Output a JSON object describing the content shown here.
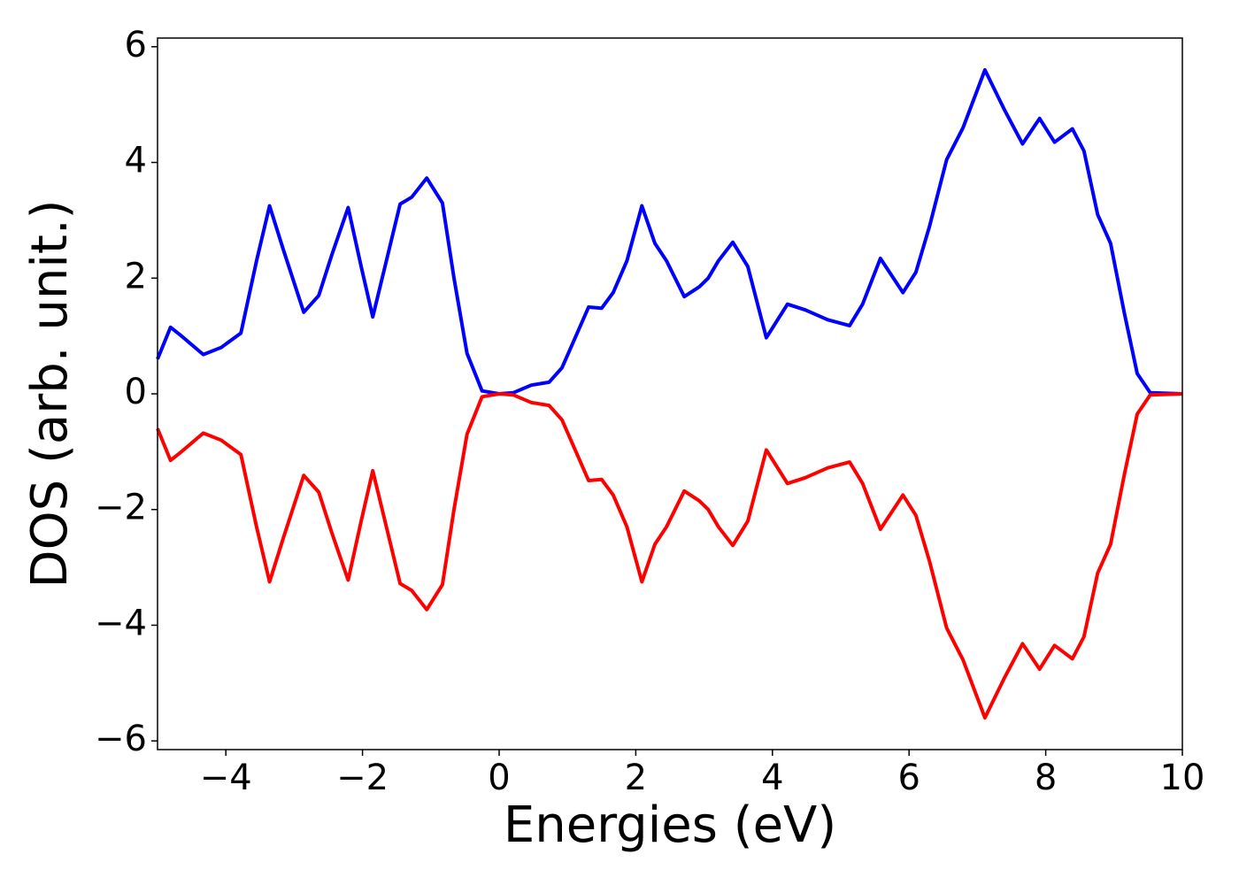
{
  "chart_data": {
    "type": "line",
    "xlabel": "Energies (eV)",
    "ylabel": "DOS (arb. unit.)",
    "x": [
      -5,
      -4.81,
      -4.65,
      -4.33,
      -4.07,
      -3.78,
      -3.55,
      -3.36,
      -3.16,
      -2.86,
      -2.64,
      -2.45,
      -2.21,
      -2.02,
      -1.85,
      -1.65,
      -1.45,
      -1.28,
      -1.06,
      -0.83,
      -0.66,
      -0.47,
      -0.25,
      0,
      0.21,
      0.47,
      0.73,
      0.92,
      1.31,
      1.5,
      1.67,
      1.87,
      2.09,
      2.28,
      2.45,
      2.71,
      2.93,
      3.06,
      3.21,
      3.42,
      3.64,
      3.91,
      4.22,
      4.48,
      4.81,
      5.13,
      5.32,
      5.58,
      5.91,
      6.1,
      6.3,
      6.55,
      6.79,
      7.11,
      7.4,
      7.66,
      7.91,
      8.13,
      8.39,
      8.56,
      8.76,
      8.95,
      9.15,
      9.34,
      9.53,
      10
    ],
    "series": [
      {
        "color": "#0000ff",
        "values": [
          0.6,
          1.15,
          1.0,
          0.68,
          0.8,
          1.05,
          2.3,
          3.25,
          2.5,
          1.41,
          1.7,
          2.4,
          3.22,
          2.2,
          1.33,
          2.3,
          3.28,
          3.4,
          3.73,
          3.3,
          2.0,
          0.7,
          0.05,
          0,
          0.02,
          0.15,
          0.2,
          0.45,
          1.5,
          1.48,
          1.75,
          2.3,
          3.25,
          2.6,
          2.3,
          1.68,
          1.85,
          2.0,
          2.3,
          2.62,
          2.2,
          0.97,
          1.55,
          1.45,
          1.28,
          1.18,
          1.55,
          2.34,
          1.75,
          2.1,
          2.9,
          4.05,
          4.6,
          5.6,
          4.9,
          4.32,
          4.76,
          4.35,
          4.58,
          4.2,
          3.1,
          2.6,
          1.4,
          0.35,
          0.02,
          0
        ]
      },
      {
        "color": "#ff0000",
        "values": [
          -0.6,
          -1.15,
          -1.0,
          -0.68,
          -0.8,
          -1.05,
          -2.3,
          -3.25,
          -2.5,
          -1.41,
          -1.7,
          -2.4,
          -3.22,
          -2.2,
          -1.33,
          -2.3,
          -3.28,
          -3.4,
          -3.73,
          -3.3,
          -2.0,
          -0.7,
          -0.05,
          0,
          -0.02,
          -0.15,
          -0.2,
          -0.45,
          -1.5,
          -1.48,
          -1.75,
          -2.3,
          -3.25,
          -2.6,
          -2.3,
          -1.68,
          -1.85,
          -2.0,
          -2.3,
          -2.62,
          -2.2,
          -0.97,
          -1.55,
          -1.45,
          -1.28,
          -1.18,
          -1.55,
          -2.34,
          -1.75,
          -2.1,
          -2.9,
          -4.05,
          -4.6,
          -5.6,
          -4.9,
          -4.32,
          -4.76,
          -4.35,
          -4.58,
          -4.2,
          -3.1,
          -2.6,
          -1.4,
          -0.35,
          -0.02,
          0
        ]
      }
    ],
    "xlim": [
      -5,
      10
    ],
    "ylim": [
      -6.15,
      6.15
    ],
    "xticks": [
      {
        "value": -4,
        "label": "−4"
      },
      {
        "value": -2,
        "label": "−2"
      },
      0,
      2,
      4,
      6,
      8,
      10
    ],
    "yticks": [
      {
        "value": -6,
        "label": "−6"
      },
      {
        "value": -4,
        "label": "−4"
      },
      {
        "value": -2,
        "label": "−2"
      },
      0,
      2,
      4,
      6
    ]
  }
}
